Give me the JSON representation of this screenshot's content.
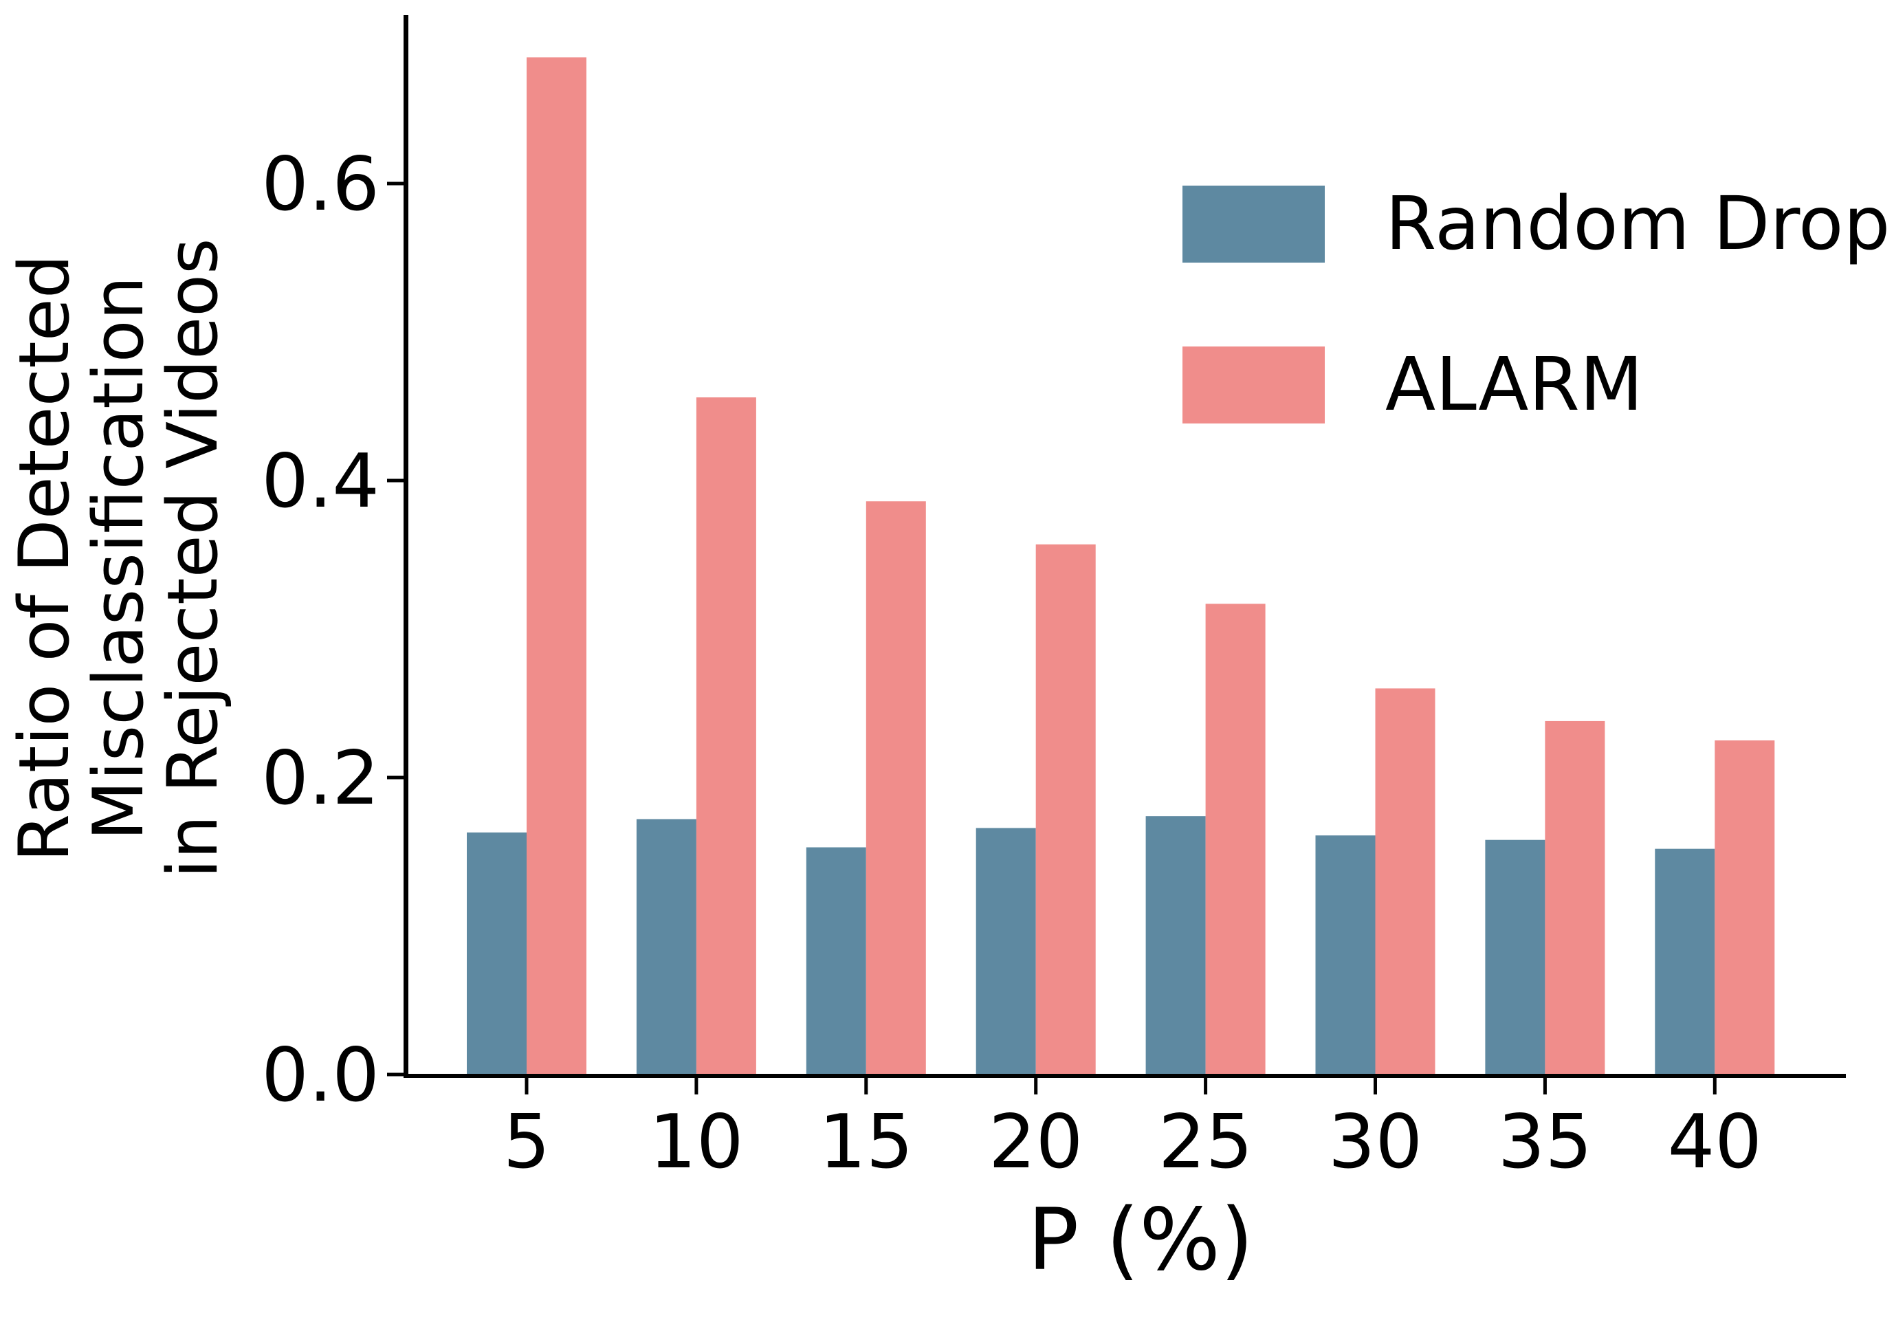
{
  "chart_data": {
    "type": "bar",
    "categories": [
      "5",
      "10",
      "15",
      "20",
      "25",
      "30",
      "35",
      "40"
    ],
    "series": [
      {
        "name": "Random Drop",
        "color": "#5E89A1",
        "values": [
          0.163,
          0.172,
          0.153,
          0.166,
          0.174,
          0.161,
          0.158,
          0.152
        ]
      },
      {
        "name": "ALARM",
        "color": "#F08D8B",
        "values": [
          0.685,
          0.456,
          0.386,
          0.357,
          0.317,
          0.26,
          0.238,
          0.225
        ]
      }
    ],
    "title": "",
    "xlabel": "P (%)",
    "ylabel_lines": [
      "Ratio of Detected",
      "Misclassification",
      "in Rejected Videos"
    ],
    "yticks": {
      "values": [
        0.0,
        0.2,
        0.4,
        0.6
      ],
      "labels": [
        "0.0",
        "0.2",
        "0.4",
        "0.6"
      ]
    },
    "ylim": [
      0,
      0.713
    ],
    "grid": false,
    "legend_position": "upper right",
    "axis_color": "#000000"
  },
  "layout_note_values_are_data_not_layout": null
}
